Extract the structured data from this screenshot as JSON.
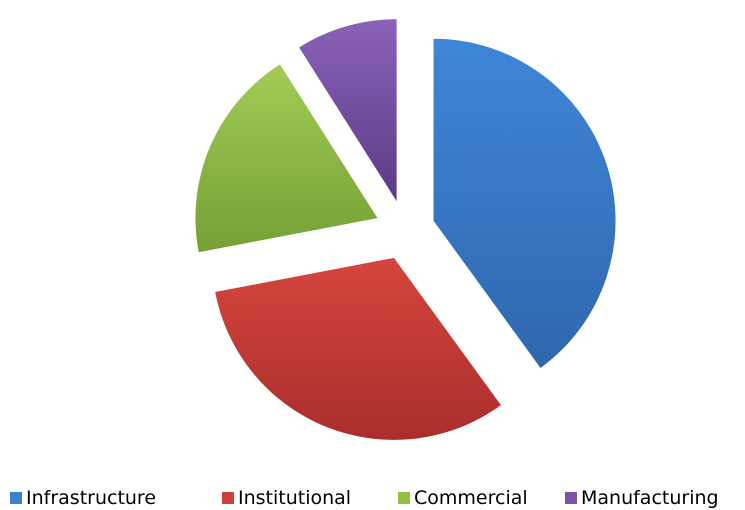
{
  "chart_data": {
    "type": "pie",
    "title": "",
    "slices": [
      {
        "label": "Infrastructure",
        "value": 40,
        "color": "#3d7fd0"
      },
      {
        "label": "Institutional",
        "value": 32,
        "color": "#cf3e3b"
      },
      {
        "label": "Commercial",
        "value": 19,
        "color": "#93bf42"
      },
      {
        "label": "Manufacturing",
        "value": 9,
        "color": "#7b52a6"
      }
    ],
    "exploded": true,
    "legend_position": "bottom"
  }
}
